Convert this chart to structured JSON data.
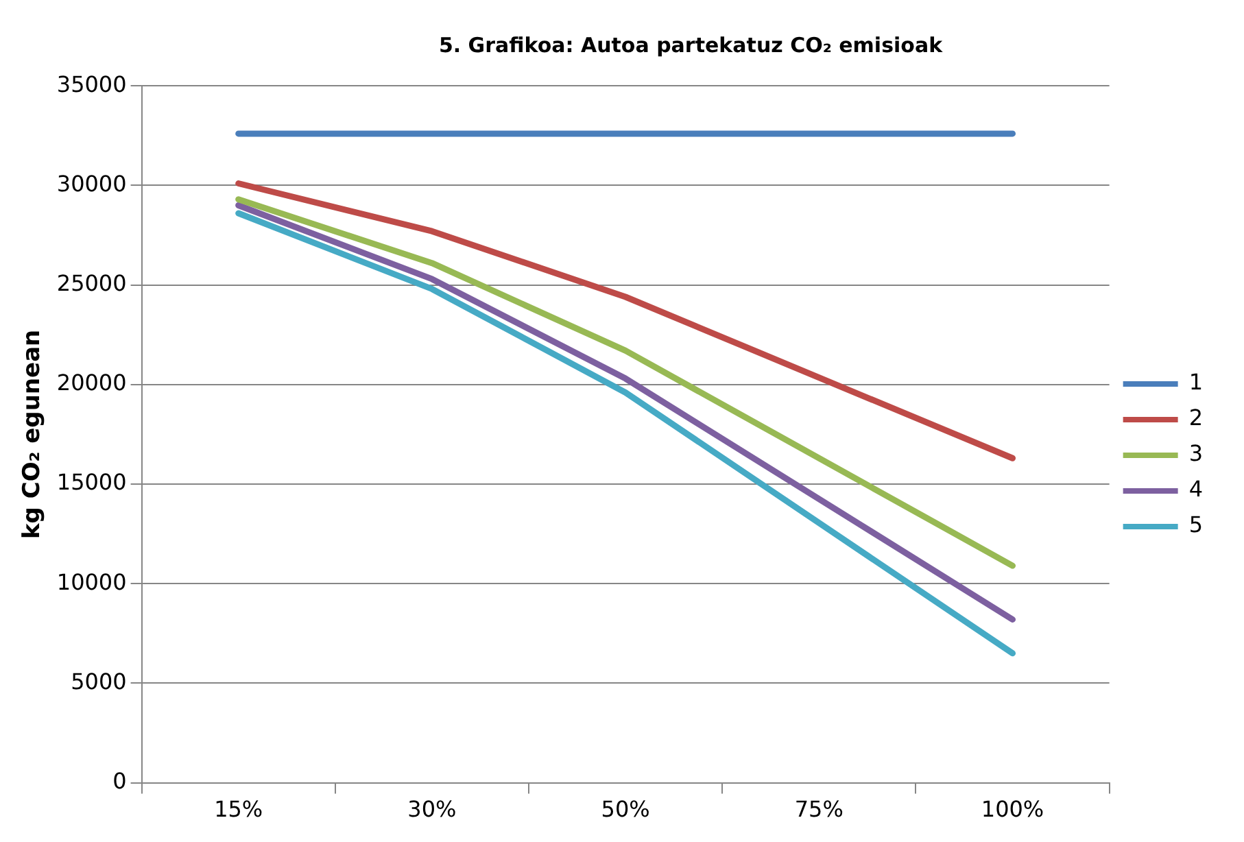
{
  "chart_data": {
    "type": "line",
    "title": "5. Grafikoa: Autoa partekatuz CO₂ emisioak",
    "ylabel": "kg CO₂ egunean",
    "categories": [
      "15%",
      "30%",
      "50%",
      "75%",
      "100%"
    ],
    "series": [
      {
        "name": "1",
        "color": "#4a7ebb",
        "values": [
          32600,
          32600,
          32600,
          32600,
          32600
        ]
      },
      {
        "name": "2",
        "color": "#be4b48",
        "values": [
          30100,
          27700,
          24400,
          null,
          16300
        ]
      },
      {
        "name": "3",
        "color": "#98b954",
        "values": [
          29300,
          26100,
          21700,
          null,
          10900
        ]
      },
      {
        "name": "4",
        "color": "#7d60a0",
        "values": [
          29000,
          25300,
          20300,
          null,
          8200
        ]
      },
      {
        "name": "5",
        "color": "#46aac5",
        "values": [
          28600,
          24800,
          19600,
          null,
          6500
        ]
      }
    ],
    "ylim": [
      0,
      35000
    ],
    "yticks": [
      0,
      5000,
      10000,
      15000,
      20000,
      25000,
      30000,
      35000
    ],
    "grid": "y",
    "legend": "right",
    "marker": "none",
    "line_style": "solid"
  }
}
